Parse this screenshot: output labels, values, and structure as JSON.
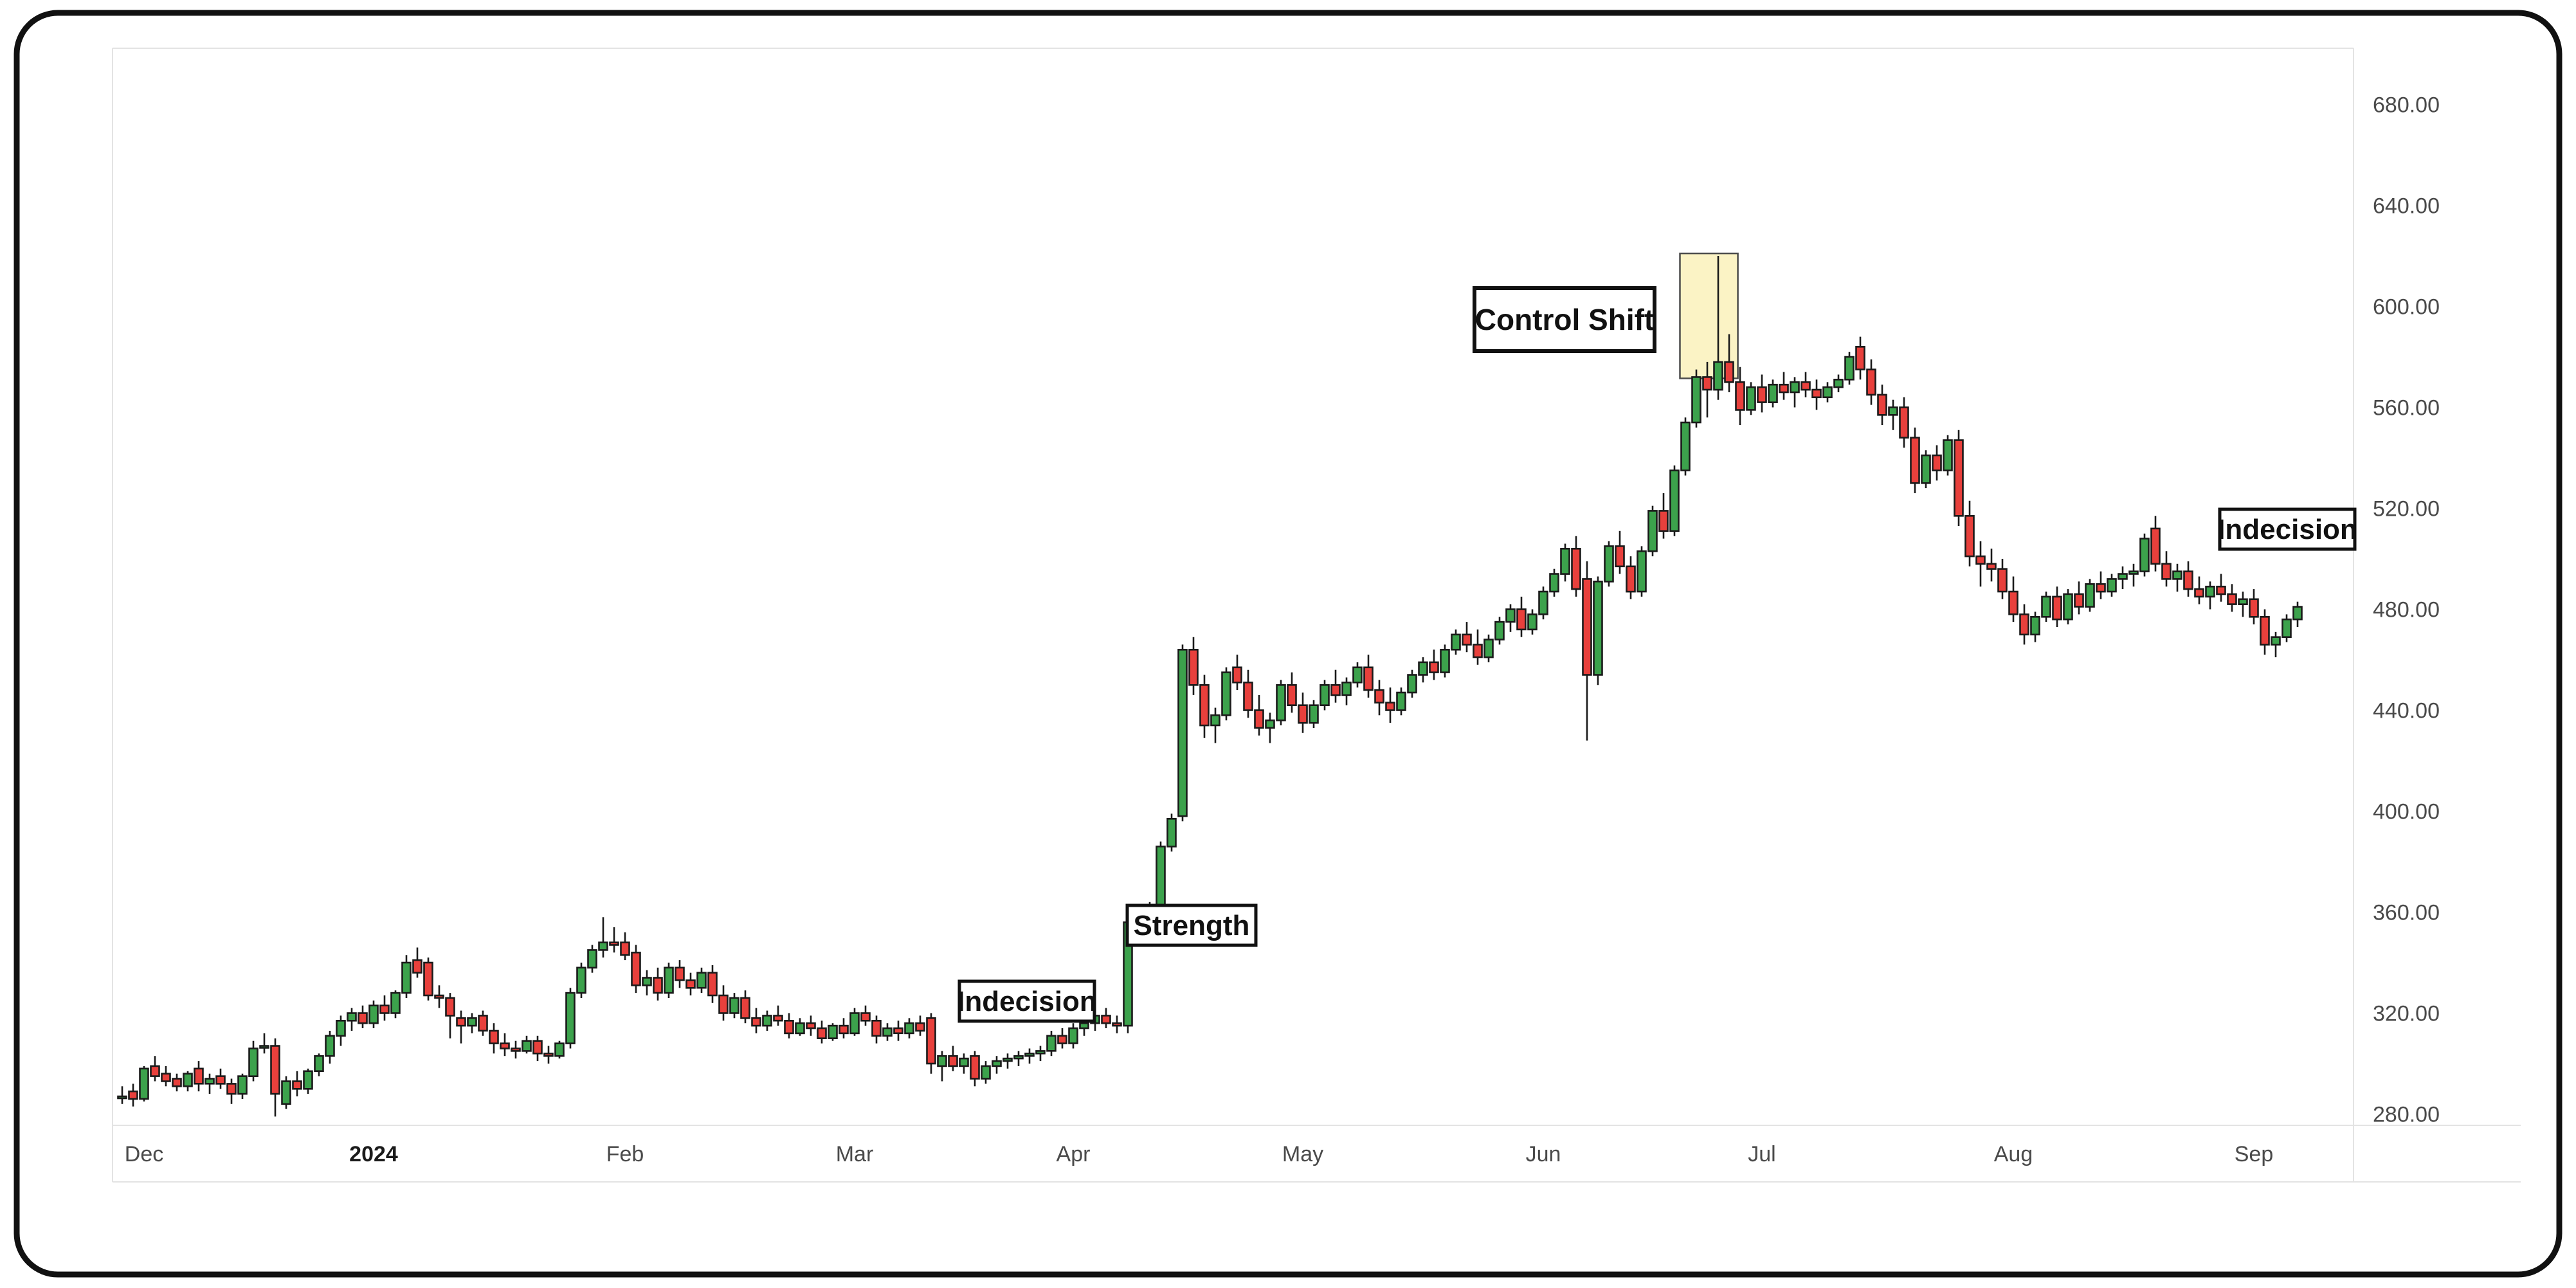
{
  "chart_data": {
    "type": "candlestick",
    "title": "",
    "xlabel": "",
    "ylabel": "",
    "y_axis": {
      "min": 280,
      "max": 680,
      "step": 40,
      "ticks": [
        {
          "label": "680.00",
          "price": 680
        },
        {
          "label": "640.00",
          "price": 640
        },
        {
          "label": "600.00",
          "price": 600
        },
        {
          "label": "560.00",
          "price": 560
        },
        {
          "label": "520.00",
          "price": 520
        },
        {
          "label": "480.00",
          "price": 480
        },
        {
          "label": "440.00",
          "price": 440
        },
        {
          "label": "400.00",
          "price": 400
        },
        {
          "label": "360.00",
          "price": 360
        },
        {
          "label": "320.00",
          "price": 320
        },
        {
          "label": "280.00",
          "price": 280
        }
      ]
    },
    "x_axis": {
      "month_labels": [
        {
          "label": "Dec",
          "index": 2,
          "bold": false
        },
        {
          "label": "2024",
          "index": 23,
          "bold": true
        },
        {
          "label": "Feb",
          "index": 46,
          "bold": false
        },
        {
          "label": "Mar",
          "index": 67,
          "bold": false
        },
        {
          "label": "Apr",
          "index": 87,
          "bold": false
        },
        {
          "label": "May",
          "index": 108,
          "bold": false
        },
        {
          "label": "Jun",
          "index": 130,
          "bold": false
        },
        {
          "label": "Jul",
          "index": 150,
          "bold": false
        },
        {
          "label": "Aug",
          "index": 173,
          "bold": false
        },
        {
          "label": "Sep",
          "index": 195,
          "bold": false
        }
      ]
    },
    "annotations": [
      {
        "id": "indecision-left",
        "label": "Indecision"
      },
      {
        "id": "strength",
        "label": "Strength"
      },
      {
        "id": "control-shift",
        "label": "Control Shift"
      },
      {
        "id": "indecision-right",
        "label": "Indecision"
      }
    ],
    "highlight_box": {
      "from_index": 142.5,
      "to_index": 147.8,
      "price_top": 621,
      "price_bottom": 571.5
    },
    "colors": {
      "up": "#3CA24C",
      "down": "#E8403C",
      "outline": "#1a1a1a",
      "axis_text": "#4a4a4a",
      "grid": "#e3e3e3",
      "highlight_fill": "#FBF3C5",
      "highlight_border": "#4a4a4a",
      "annotation_border": "#111111",
      "annotation_bg": "#ffffff",
      "page_border": "#111111"
    },
    "candles": [
      [
        287,
        291,
        284,
        287
      ],
      [
        289,
        292,
        283,
        286
      ],
      [
        286,
        299,
        285,
        298
      ],
      [
        299,
        303,
        293,
        295
      ],
      [
        296,
        299,
        291,
        293
      ],
      [
        294,
        296,
        289,
        291
      ],
      [
        291,
        297,
        289,
        296
      ],
      [
        298,
        301,
        289,
        292
      ],
      [
        292,
        296,
        288,
        294
      ],
      [
        295,
        298,
        290,
        292
      ],
      [
        292,
        294,
        284,
        288
      ],
      [
        288,
        296,
        286,
        295
      ],
      [
        295,
        309,
        293,
        306
      ],
      [
        307,
        312,
        304,
        307
      ],
      [
        307,
        310,
        279,
        288
      ],
      [
        284,
        295,
        282,
        293
      ],
      [
        293,
        297,
        287,
        290
      ],
      [
        290,
        298,
        288,
        297
      ],
      [
        297,
        304,
        295,
        303
      ],
      [
        303,
        313,
        300,
        311
      ],
      [
        311,
        319,
        307,
        317
      ],
      [
        317,
        322,
        313,
        320
      ],
      [
        320,
        323,
        314,
        316
      ],
      [
        316,
        325,
        314,
        323
      ],
      [
        323,
        327,
        317,
        320
      ],
      [
        320,
        329,
        318,
        328
      ],
      [
        328,
        343,
        326,
        340
      ],
      [
        341,
        346,
        334,
        336
      ],
      [
        340,
        342,
        325,
        327
      ],
      [
        327,
        331,
        322,
        326
      ],
      [
        326,
        328,
        310,
        319
      ],
      [
        318,
        321,
        308,
        315
      ],
      [
        315,
        320,
        312,
        318
      ],
      [
        319,
        321,
        311,
        313
      ],
      [
        313,
        316,
        304,
        308
      ],
      [
        308,
        312,
        303,
        306
      ],
      [
        306,
        309,
        302,
        305
      ],
      [
        305,
        311,
        304,
        309
      ],
      [
        309,
        311,
        301,
        304
      ],
      [
        304,
        307,
        300,
        303
      ],
      [
        303,
        309,
        302,
        308
      ],
      [
        308,
        330,
        306,
        328
      ],
      [
        328,
        340,
        326,
        338
      ],
      [
        338,
        347,
        336,
        345
      ],
      [
        345,
        358,
        342,
        348
      ],
      [
        348,
        354,
        344,
        347
      ],
      [
        348,
        352,
        341,
        343
      ],
      [
        344,
        347,
        328,
        331
      ],
      [
        331,
        337,
        327,
        334
      ],
      [
        334,
        338,
        325,
        328
      ],
      [
        328,
        340,
        326,
        338
      ],
      [
        338,
        341,
        330,
        333
      ],
      [
        333,
        336,
        327,
        330
      ],
      [
        330,
        338,
        328,
        336
      ],
      [
        336,
        339,
        324,
        327
      ],
      [
        327,
        331,
        317,
        320
      ],
      [
        320,
        328,
        318,
        326
      ],
      [
        326,
        329,
        316,
        318
      ],
      [
        318,
        322,
        312,
        315
      ],
      [
        315,
        321,
        313,
        319
      ],
      [
        319,
        323,
        315,
        317
      ],
      [
        317,
        320,
        310,
        312
      ],
      [
        312,
        318,
        311,
        316
      ],
      [
        316,
        319,
        311,
        314
      ],
      [
        314,
        317,
        308,
        310
      ],
      [
        310,
        316,
        309,
        315
      ],
      [
        315,
        318,
        310,
        312
      ],
      [
        312,
        322,
        311,
        320
      ],
      [
        320,
        323,
        315,
        317
      ],
      [
        317,
        319,
        308,
        311
      ],
      [
        311,
        316,
        309,
        314
      ],
      [
        314,
        317,
        309,
        312
      ],
      [
        312,
        318,
        310,
        316
      ],
      [
        316,
        319,
        311,
        313
      ],
      [
        318,
        320,
        296,
        300
      ],
      [
        299,
        305,
        293,
        303
      ],
      [
        303,
        307,
        297,
        299
      ],
      [
        299,
        304,
        296,
        302
      ],
      [
        303,
        305,
        291,
        294
      ],
      [
        294,
        301,
        292,
        299
      ],
      [
        299,
        303,
        296,
        301
      ],
      [
        301,
        304,
        298,
        302
      ],
      [
        302,
        305,
        299,
        303
      ],
      [
        303,
        306,
        300,
        304
      ],
      [
        304,
        307,
        301,
        305
      ],
      [
        305,
        313,
        303,
        311
      ],
      [
        311,
        314,
        306,
        308
      ],
      [
        308,
        316,
        306,
        314
      ],
      [
        314,
        318,
        311,
        316
      ],
      [
        316,
        321,
        313,
        319
      ],
      [
        319,
        322,
        314,
        316
      ],
      [
        316,
        319,
        312,
        315
      ],
      [
        315,
        358,
        312,
        356
      ],
      [
        357,
        363,
        353,
        359
      ],
      [
        359,
        364,
        355,
        361
      ],
      [
        361,
        388,
        359,
        386
      ],
      [
        386,
        399,
        384,
        397
      ],
      [
        398,
        466,
        396,
        464
      ],
      [
        464,
        469,
        446,
        450
      ],
      [
        450,
        454,
        429,
        434
      ],
      [
        434,
        441,
        427,
        438
      ],
      [
        438,
        457,
        436,
        455
      ],
      [
        457,
        462,
        448,
        451
      ],
      [
        451,
        456,
        437,
        440
      ],
      [
        440,
        446,
        430,
        433
      ],
      [
        433,
        439,
        427,
        436
      ],
      [
        436,
        452,
        434,
        450
      ],
      [
        450,
        455,
        439,
        442
      ],
      [
        442,
        447,
        431,
        435
      ],
      [
        435,
        444,
        433,
        442
      ],
      [
        442,
        452,
        440,
        450
      ],
      [
        450,
        456,
        443,
        446
      ],
      [
        446,
        453,
        442,
        451
      ],
      [
        451,
        459,
        449,
        457
      ],
      [
        457,
        462,
        445,
        448
      ],
      [
        448,
        452,
        438,
        443
      ],
      [
        443,
        449,
        435,
        440
      ],
      [
        440,
        449,
        438,
        447
      ],
      [
        447,
        456,
        445,
        454
      ],
      [
        454,
        461,
        451,
        459
      ],
      [
        459,
        464,
        452,
        455
      ],
      [
        455,
        466,
        453,
        464
      ],
      [
        464,
        472,
        462,
        470
      ],
      [
        470,
        475,
        463,
        466
      ],
      [
        466,
        472,
        458,
        461
      ],
      [
        461,
        470,
        459,
        468
      ],
      [
        468,
        477,
        466,
        475
      ],
      [
        475,
        482,
        471,
        480
      ],
      [
        480,
        485,
        469,
        472
      ],
      [
        472,
        480,
        470,
        478
      ],
      [
        478,
        489,
        476,
        487
      ],
      [
        487,
        496,
        485,
        494
      ],
      [
        494,
        506,
        491,
        504
      ],
      [
        504,
        509,
        485,
        488
      ],
      [
        492,
        499,
        428,
        454
      ],
      [
        454,
        493,
        450,
        491
      ],
      [
        491,
        507,
        489,
        505
      ],
      [
        505,
        511,
        494,
        497
      ],
      [
        497,
        501,
        484,
        487
      ],
      [
        487,
        505,
        485,
        503
      ],
      [
        503,
        521,
        501,
        519
      ],
      [
        519,
        526,
        508,
        511
      ],
      [
        511,
        537,
        509,
        535
      ],
      [
        535,
        556,
        533,
        554
      ],
      [
        554,
        575,
        552,
        572
      ],
      [
        572,
        578,
        556,
        567
      ],
      [
        567,
        620,
        563,
        578
      ],
      [
        578,
        589,
        566,
        570
      ],
      [
        570,
        576,
        553,
        559
      ],
      [
        559,
        570,
        557,
        568
      ],
      [
        568,
        573,
        558,
        562
      ],
      [
        562,
        571,
        560,
        569
      ],
      [
        569,
        574,
        563,
        566
      ],
      [
        566,
        572,
        560,
        570
      ],
      [
        570,
        574,
        564,
        567
      ],
      [
        567,
        571,
        559,
        564
      ],
      [
        564,
        570,
        562,
        568
      ],
      [
        568,
        573,
        566,
        571
      ],
      [
        571,
        582,
        569,
        580
      ],
      [
        584,
        588,
        571,
        575
      ],
      [
        575,
        579,
        561,
        565
      ],
      [
        565,
        569,
        553,
        557
      ],
      [
        557,
        563,
        551,
        560
      ],
      [
        560,
        564,
        544,
        548
      ],
      [
        548,
        552,
        526,
        530
      ],
      [
        530,
        543,
        528,
        541
      ],
      [
        541,
        545,
        531,
        535
      ],
      [
        535,
        549,
        533,
        547
      ],
      [
        547,
        551,
        513,
        517
      ],
      [
        517,
        523,
        497,
        501
      ],
      [
        501,
        507,
        489,
        498
      ],
      [
        498,
        504,
        491,
        496
      ],
      [
        496,
        500,
        484,
        487
      ],
      [
        487,
        493,
        475,
        478
      ],
      [
        478,
        482,
        466,
        470
      ],
      [
        470,
        479,
        467,
        477
      ],
      [
        477,
        487,
        475,
        485
      ],
      [
        485,
        489,
        473,
        476
      ],
      [
        476,
        488,
        474,
        486
      ],
      [
        486,
        491,
        478,
        481
      ],
      [
        481,
        492,
        479,
        490
      ],
      [
        490,
        495,
        484,
        487
      ],
      [
        487,
        494,
        485,
        492
      ],
      [
        492,
        497,
        488,
        494
      ],
      [
        494,
        498,
        489,
        495
      ],
      [
        495,
        510,
        493,
        508
      ],
      [
        512,
        517,
        495,
        498
      ],
      [
        498,
        503,
        489,
        492
      ],
      [
        492,
        498,
        487,
        495
      ],
      [
        495,
        499,
        485,
        488
      ],
      [
        488,
        493,
        482,
        485
      ],
      [
        485,
        491,
        480,
        489
      ],
      [
        489,
        494,
        483,
        486
      ],
      [
        486,
        490,
        479,
        482
      ],
      [
        482,
        487,
        477,
        484
      ],
      [
        484,
        488,
        474,
        477
      ],
      [
        477,
        480,
        462,
        466
      ],
      [
        466,
        471,
        461,
        469
      ],
      [
        469,
        478,
        467,
        476
      ],
      [
        476,
        483,
        473,
        481
      ]
    ]
  }
}
